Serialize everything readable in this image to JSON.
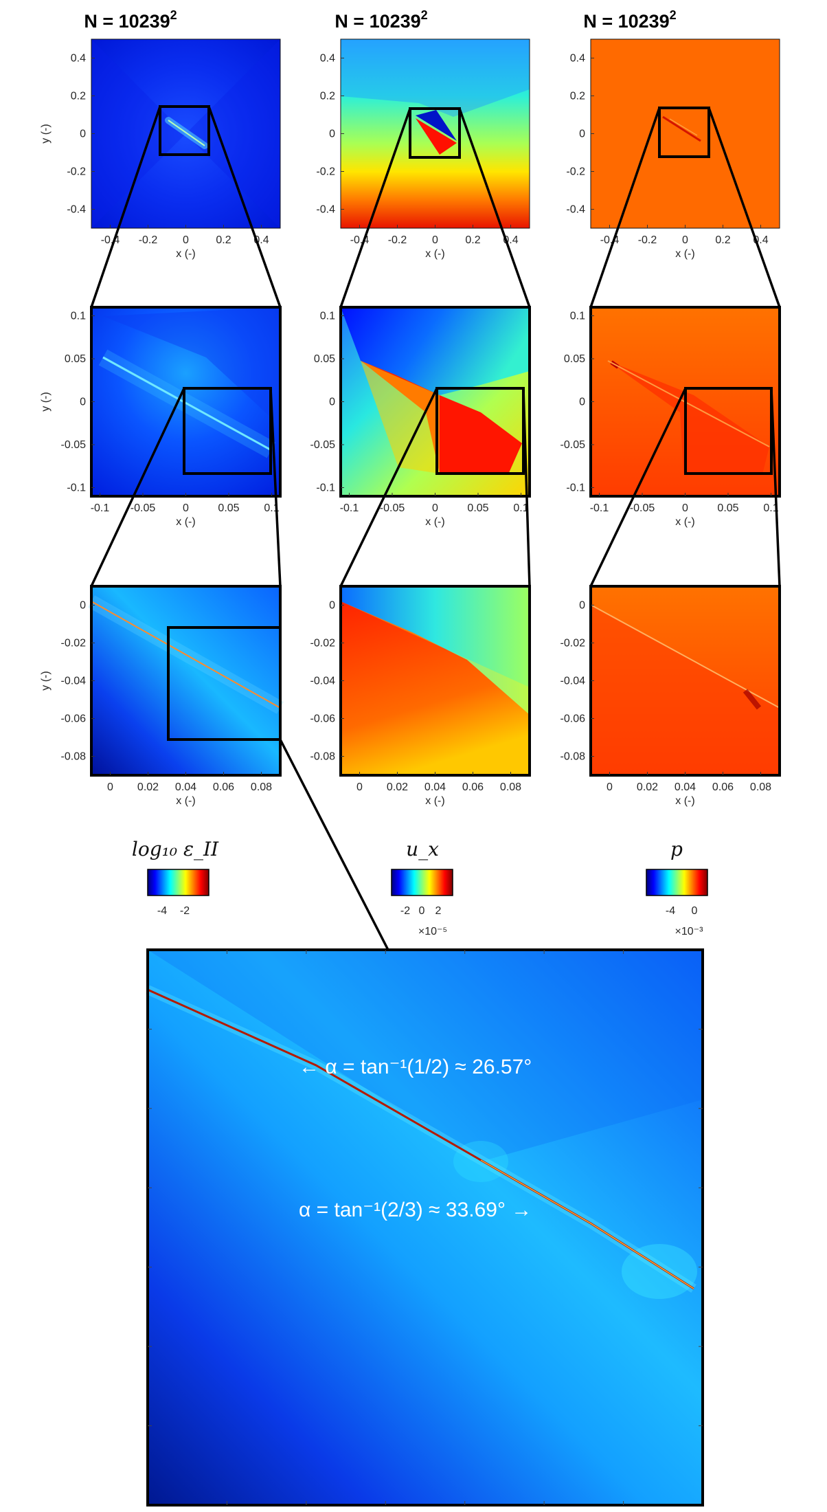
{
  "colors": {
    "jet_dark_blue": "#00007F",
    "jet_blue": "#0000FF",
    "jet_cyan": "#00FFFF",
    "jet_yellow": "#FFFF00",
    "jet_orange": "#FF7F00",
    "jet_red": "#FF0000",
    "jet_dark_red": "#7F0000"
  },
  "chart_data": [
    {
      "type": "heatmap",
      "panel": "strain_rate_full",
      "title": "N = 10239",
      "title_superscript": "2",
      "xlabel": "x (-)",
      "ylabel": "y (-)",
      "xlim": [
        -0.5,
        0.5
      ],
      "ylim": [
        -0.5,
        0.5
      ],
      "xticks": [
        "-0.4",
        "-0.2",
        "0",
        "0.2",
        "0.4"
      ],
      "yticks": [
        "0.4",
        "0.2",
        "0",
        "-0.2",
        "-0.4"
      ]
    },
    {
      "type": "heatmap",
      "panel": "ux_full",
      "title": "N = 10239",
      "title_superscript": "2",
      "xlabel": "x (-)",
      "ylabel": "",
      "xlim": [
        -0.5,
        0.5
      ],
      "ylim": [
        -0.5,
        0.5
      ],
      "xticks": [
        "-0.4",
        "-0.2",
        "0",
        "0.2",
        "0.4"
      ],
      "yticks": [
        "0.4",
        "0.2",
        "0",
        "-0.2",
        "-0.4"
      ]
    },
    {
      "type": "heatmap",
      "panel": "p_full",
      "title": "N = 10239",
      "title_superscript": "2",
      "xlabel": "x (-)",
      "ylabel": "",
      "xlim": [
        -0.5,
        0.5
      ],
      "ylim": [
        -0.5,
        0.5
      ],
      "xticks": [
        "-0.4",
        "-0.2",
        "0",
        "0.2",
        "0.4"
      ],
      "yticks": [
        "0.4",
        "0.2",
        "0",
        "-0.2",
        "-0.4"
      ]
    },
    {
      "type": "heatmap",
      "panel": "strain_rate_zoom1",
      "xlabel": "x (-)",
      "ylabel": "y (-)",
      "xlim": [
        -0.11,
        0.11
      ],
      "ylim": [
        -0.11,
        0.11
      ],
      "xticks": [
        "-0.1",
        "-0.05",
        "0",
        "0.05",
        "0.1"
      ],
      "yticks": [
        "0.1",
        "0.05",
        "0",
        "-0.05",
        "-0.1"
      ]
    },
    {
      "type": "heatmap",
      "panel": "ux_zoom1",
      "xlabel": "x (-)",
      "ylabel": "",
      "xlim": [
        -0.11,
        0.11
      ],
      "ylim": [
        -0.11,
        0.11
      ],
      "xticks": [
        "-0.1",
        "-0.05",
        "0",
        "0.05",
        "0.1"
      ],
      "yticks": [
        "0.1",
        "0.05",
        "0",
        "-0.05",
        "-0.1"
      ]
    },
    {
      "type": "heatmap",
      "panel": "p_zoom1",
      "xlabel": "x (-)",
      "ylabel": "",
      "xlim": [
        -0.11,
        0.11
      ],
      "ylim": [
        -0.11,
        0.11
      ],
      "xticks": [
        "-0.1",
        "-0.05",
        "0",
        "0.05",
        "0.1"
      ],
      "yticks": [
        "0.1",
        "0.05",
        "0",
        "-0.05",
        "-0.1"
      ]
    },
    {
      "type": "heatmap",
      "panel": "strain_rate_zoom2",
      "xlabel": "x (-)",
      "ylabel": "y (-)",
      "xlim": [
        -0.01,
        0.09
      ],
      "ylim": [
        -0.09,
        0.01
      ],
      "xticks": [
        "0",
        "0.02",
        "0.04",
        "0.06",
        "0.08"
      ],
      "yticks": [
        "0",
        "-0.02",
        "-0.04",
        "-0.06",
        "-0.08"
      ]
    },
    {
      "type": "heatmap",
      "panel": "ux_zoom2",
      "xlabel": "x (-)",
      "ylabel": "",
      "xlim": [
        -0.01,
        0.09
      ],
      "ylim": [
        -0.09,
        0.01
      ],
      "xticks": [
        "0",
        "0.02",
        "0.04",
        "0.06",
        "0.08"
      ],
      "yticks": [
        "0",
        "-0.02",
        "-0.04",
        "-0.06",
        "-0.08"
      ]
    },
    {
      "type": "heatmap",
      "panel": "p_zoom2",
      "xlabel": "x (-)",
      "ylabel": "",
      "xlim": [
        -0.01,
        0.09
      ],
      "ylim": [
        -0.09,
        0.01
      ],
      "xticks": [
        "0",
        "0.02",
        "0.04",
        "0.06",
        "0.08"
      ],
      "yticks": [
        "0",
        "-0.02",
        "-0.04",
        "-0.06",
        "-0.08"
      ]
    },
    {
      "type": "heatmap",
      "panel": "strain_rate_zoom3",
      "xlim": [
        0.03,
        0.09
      ],
      "ylim": [
        -0.07,
        -0.01
      ],
      "annotations": [
        "← α = tan⁻¹(1/2) ≈ 26.57°",
        "α = tan⁻¹(2/3) ≈ 33.69° →"
      ]
    }
  ],
  "colorbars": [
    {
      "label": "log₁₀ ε_II",
      "ticks": [
        "-4",
        "-2"
      ],
      "multiplier": ""
    },
    {
      "label": "u_x",
      "ticks": [
        "-2",
        "0",
        "2"
      ],
      "multiplier": "×10⁻⁵"
    },
    {
      "label": "p",
      "ticks": [
        "-4",
        "0"
      ],
      "multiplier": "×10⁻³"
    }
  ]
}
